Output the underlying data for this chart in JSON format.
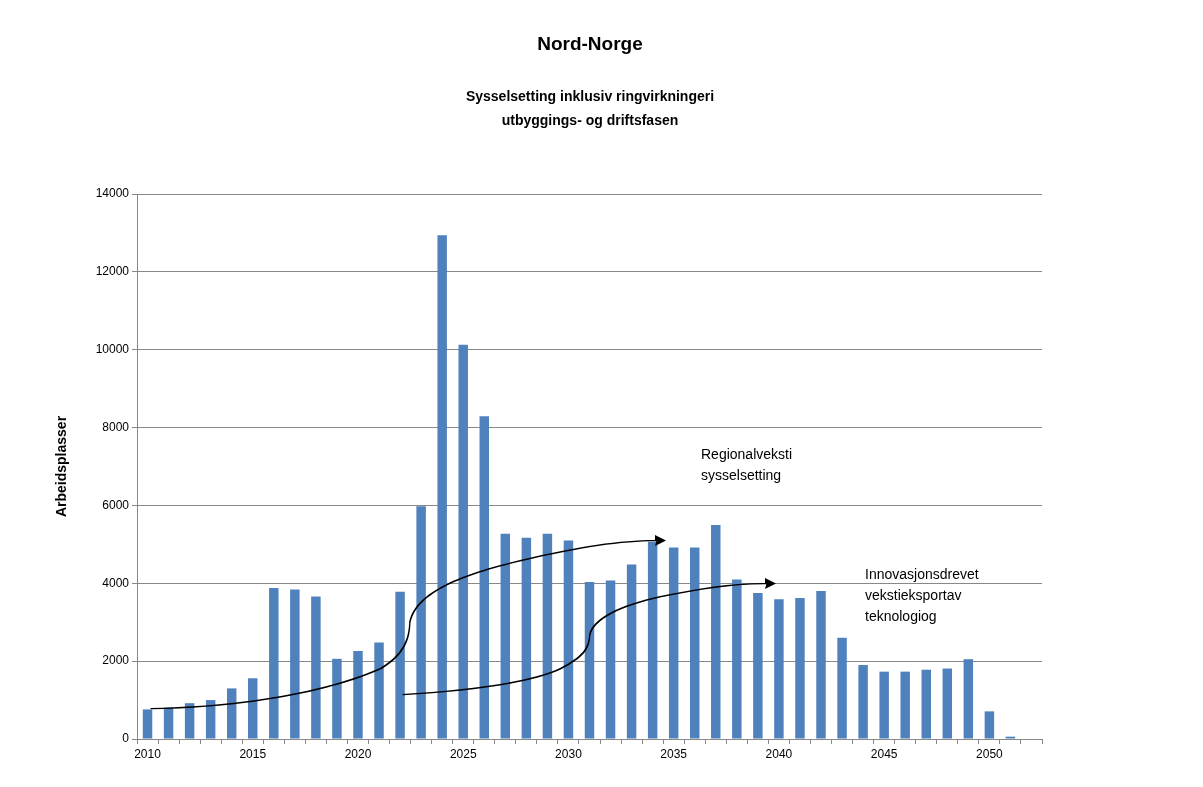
{
  "chart_data": {
    "type": "bar",
    "title": "Nord-Norge",
    "subtitle": "Sysselsetting inklusiv ringvirkningeri\nutbyggings- og driftsfasen",
    "ylabel": "Arbeidsplasser",
    "categories": [
      "2010",
      null,
      null,
      null,
      null,
      "2015",
      null,
      null,
      null,
      null,
      "2020",
      null,
      null,
      null,
      null,
      "2025",
      null,
      null,
      null,
      null,
      "2030",
      null,
      null,
      null,
      null,
      "2035",
      null,
      null,
      null,
      null,
      "2040",
      null,
      null,
      null,
      null,
      "2045",
      null,
      null,
      null,
      null,
      "2050",
      null,
      null
    ],
    "values": [
      760,
      810,
      920,
      1000,
      1300,
      1560,
      3880,
      3840,
      3660,
      2060,
      2260,
      2480,
      3780,
      5980,
      12940,
      10130,
      8290,
      5270,
      5170,
      5270,
      5100,
      4030,
      4070,
      4480,
      5070,
      4920,
      4920,
      5500,
      4100,
      3750,
      3590,
      3620,
      3800,
      2600,
      1900,
      1730,
      1730,
      1780,
      1810,
      2050,
      710,
      60,
      null
    ],
    "color": "#4f81bd",
    "ylim": [
      0,
      14000
    ],
    "yticks": [
      0,
      2000,
      4000,
      6000,
      8000,
      10000,
      12000,
      14000
    ],
    "grid": "y",
    "legend": false,
    "annotations": [
      "Regionalveksti\nsysselsetting",
      "Innovasjonsdrevet\nvekstieksportav\nteknologiog"
    ]
  }
}
